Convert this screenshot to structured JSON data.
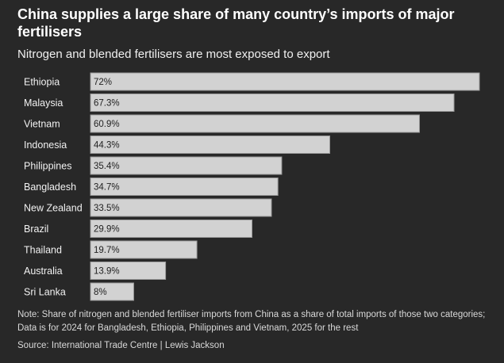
{
  "header": {
    "title": "China supplies a large share of many country’s imports of major fertilisers",
    "subtitle": "Nitrogen and blended fertilisers are most exposed to export"
  },
  "footer": {
    "note": "Note: Share of nitrogen and blended fertiliser imports from China as a share of total imports of those two categories; Data is for 2024 for Bangladesh, Ethiopia, Philippines and Vietnam, 2025 for the rest",
    "source": "Source: International Trade Centre | Lewis Jackson"
  },
  "colors": {
    "background": "#282828",
    "bar_fill": "#d2d2d2",
    "bar_edge": "#9a9a9a"
  },
  "chart_data": {
    "type": "bar",
    "orientation": "horizontal",
    "categories": [
      "Ethiopia",
      "Malaysia",
      "Vietnam",
      "Indonesia",
      "Philippines",
      "Bangladesh",
      "New Zealand",
      "Brazil",
      "Thailand",
      "Australia",
      "Sri Lanka"
    ],
    "values": [
      72,
      67.3,
      60.9,
      44.3,
      35.4,
      34.7,
      33.5,
      29.9,
      19.7,
      13.9,
      8
    ],
    "value_labels": [
      "72%",
      "67.3%",
      "60.9%",
      "44.3%",
      "35.4%",
      "34.7%",
      "33.5%",
      "29.9%",
      "19.7%",
      "13.9%",
      "8%"
    ],
    "title": "China supplies a large share of many country’s imports of major fertilisers",
    "subtitle": "Nitrogen and blended fertilisers are most exposed to export",
    "xlabel": "",
    "ylabel": "",
    "xlim": [
      0,
      72
    ],
    "grid": false,
    "legend": false
  }
}
